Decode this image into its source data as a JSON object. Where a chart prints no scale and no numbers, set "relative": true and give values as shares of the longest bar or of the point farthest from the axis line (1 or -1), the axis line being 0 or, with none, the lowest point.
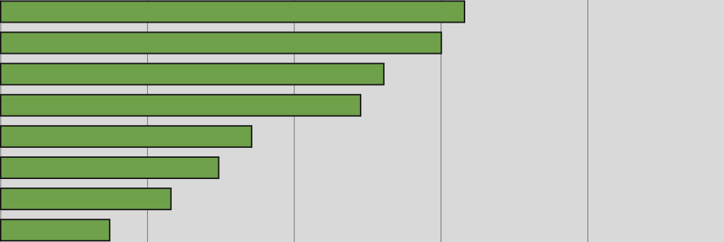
{
  "chart_data": {
    "type": "bar",
    "orientation": "horizontal",
    "relative": true,
    "grid": "x",
    "categories": [
      null,
      null,
      null,
      null,
      null,
      null,
      null,
      null
    ],
    "values": [
      1,
      0.95,
      0.826,
      0.776,
      0.541,
      0.47,
      0.367,
      0.235
    ],
    "color": "#6fa04a"
  }
}
